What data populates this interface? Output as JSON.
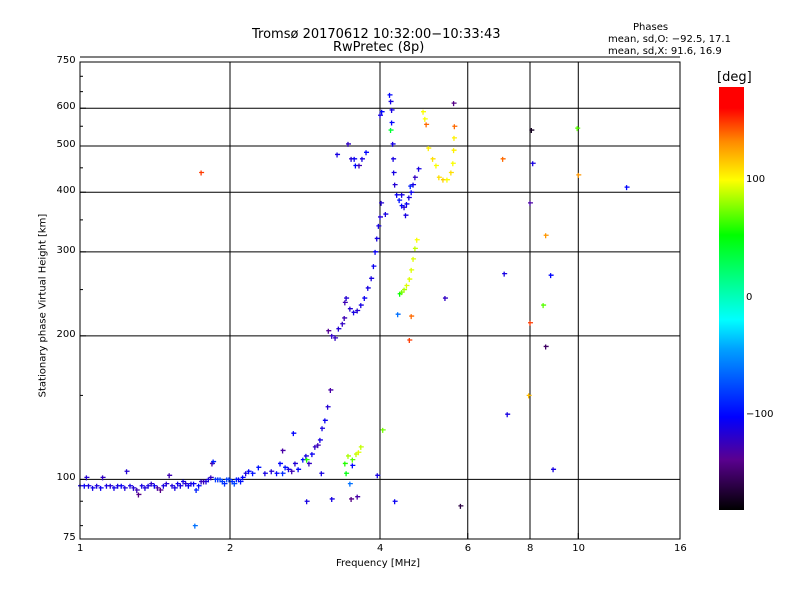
{
  "chart_data": {
    "type": "scatter",
    "title": "Tromsø 20170612 10:32:00−10:33:43",
    "subtitle": "RwPretec (8p)",
    "xlabel": "Frequency [MHz]",
    "ylabel": "Stationary phase Virtual Height [km]",
    "xscale": "log",
    "yscale": "log",
    "xlim": [
      1,
      16
    ],
    "ylim": [
      75,
      750
    ],
    "xticks": [
      1,
      2,
      4,
      6,
      8,
      10,
      16
    ],
    "xtick_labels": [
      "1",
      "2",
      "4",
      "6",
      "8",
      "10",
      "16"
    ],
    "yticks": [
      75,
      100,
      200,
      300,
      400,
      500,
      600,
      750
    ],
    "ytick_labels": [
      "75",
      "100",
      "200",
      "300",
      "400",
      "500",
      "600",
      "750"
    ],
    "grid": true,
    "legend": {
      "title": "Phases",
      "line_o": "mean, sd,O: −92.5, 17.1",
      "line_x": "mean, sd,X:  91.6, 16.9",
      "placement": "top-right"
    },
    "colorbar": {
      "label": "[deg]",
      "range": [
        -180,
        180
      ],
      "ticks": [
        100,
        0,
        -100
      ],
      "tick_labels": [
        "100",
        "0",
        "−100"
      ]
    },
    "points_fields": [
      "frequency_MHz",
      "height_km",
      "phase_deg"
    ],
    "points": [
      [
        1.0,
        97,
        -110
      ],
      [
        1.02,
        97,
        -105
      ],
      [
        1.03,
        101,
        -115
      ],
      [
        1.04,
        97,
        -110
      ],
      [
        1.06,
        96,
        -108
      ],
      [
        1.08,
        97,
        -112
      ],
      [
        1.1,
        96,
        -105
      ],
      [
        1.11,
        101,
        -120
      ],
      [
        1.13,
        97,
        -110
      ],
      [
        1.15,
        97,
        -115
      ],
      [
        1.17,
        96,
        -108
      ],
      [
        1.19,
        97,
        -110
      ],
      [
        1.21,
        97,
        -105
      ],
      [
        1.23,
        96,
        -112
      ],
      [
        1.24,
        104,
        -115
      ],
      [
        1.26,
        97,
        -110
      ],
      [
        1.28,
        96,
        -115
      ],
      [
        1.3,
        95,
        -125
      ],
      [
        1.31,
        93,
        -140
      ],
      [
        1.33,
        97,
        -110
      ],
      [
        1.35,
        96,
        -112
      ],
      [
        1.37,
        97,
        -110
      ],
      [
        1.39,
        98,
        -118
      ],
      [
        1.41,
        97,
        -105
      ],
      [
        1.43,
        96,
        -130
      ],
      [
        1.45,
        95,
        -140
      ],
      [
        1.47,
        97,
        -110
      ],
      [
        1.49,
        98,
        -115
      ],
      [
        1.51,
        102,
        -125
      ],
      [
        1.53,
        97,
        -112
      ],
      [
        1.55,
        96,
        -110
      ],
      [
        1.57,
        98,
        -108
      ],
      [
        1.59,
        97,
        -112
      ],
      [
        1.61,
        99,
        -110
      ],
      [
        1.63,
        98,
        -115
      ],
      [
        1.65,
        97,
        -105
      ],
      [
        1.67,
        98,
        -110
      ],
      [
        1.69,
        98,
        -105
      ],
      [
        1.71,
        95,
        -90
      ],
      [
        1.73,
        97,
        -100
      ],
      [
        1.75,
        99,
        -120
      ],
      [
        1.77,
        99,
        -125
      ],
      [
        1.79,
        99,
        -112
      ],
      [
        1.81,
        100,
        -110
      ],
      [
        1.83,
        101,
        -120
      ],
      [
        1.84,
        108,
        -130
      ],
      [
        1.85,
        109,
        -90
      ],
      [
        1.87,
        100,
        -80
      ],
      [
        1.89,
        100,
        -85
      ],
      [
        1.91,
        100,
        -75
      ],
      [
        1.93,
        99,
        -80
      ],
      [
        1.95,
        98,
        -85
      ],
      [
        1.97,
        100,
        -78
      ],
      [
        1.99,
        100,
        -80
      ],
      [
        2.02,
        99,
        -85
      ],
      [
        2.04,
        98,
        -75
      ],
      [
        2.06,
        100,
        -90
      ],
      [
        2.08,
        100,
        -100
      ],
      [
        2.1,
        99,
        -95
      ],
      [
        2.12,
        101,
        -100
      ],
      [
        2.15,
        103,
        -110
      ],
      [
        2.18,
        104,
        -100
      ],
      [
        2.22,
        103,
        -95
      ],
      [
        2.28,
        106,
        -95
      ],
      [
        2.35,
        103,
        -110
      ],
      [
        2.42,
        104,
        -115
      ],
      [
        2.48,
        103,
        -100
      ],
      [
        2.52,
        108,
        -100
      ],
      [
        2.55,
        103,
        -85
      ],
      [
        2.58,
        106,
        -95
      ],
      [
        2.62,
        105,
        -110
      ],
      [
        2.66,
        104,
        -125
      ],
      [
        2.7,
        108,
        -115
      ],
      [
        2.74,
        105,
        -100
      ],
      [
        2.8,
        110,
        -95
      ],
      [
        2.84,
        112,
        -110
      ],
      [
        2.88,
        108,
        -120
      ],
      [
        2.92,
        113,
        -105
      ],
      [
        2.96,
        117,
        -120
      ],
      [
        3.0,
        118,
        -125
      ],
      [
        3.03,
        121,
        -110
      ],
      [
        3.06,
        128,
        -110
      ],
      [
        3.1,
        133,
        -105
      ],
      [
        3.14,
        142,
        -115
      ],
      [
        3.18,
        154,
        -130
      ],
      [
        3.05,
        103,
        -110
      ],
      [
        2.68,
        125,
        -100
      ],
      [
        2.85,
        110,
        60
      ],
      [
        2.55,
        115,
        -130
      ],
      [
        3.15,
        205,
        -135
      ],
      [
        3.2,
        200,
        -120
      ],
      [
        3.25,
        198,
        -120
      ],
      [
        3.3,
        207,
        -115
      ],
      [
        3.36,
        212,
        -120
      ],
      [
        3.39,
        218,
        -125
      ],
      [
        3.4,
        235,
        -125
      ],
      [
        3.42,
        240,
        -115
      ],
      [
        3.48,
        228,
        -115
      ],
      [
        3.54,
        224,
        -110
      ],
      [
        3.6,
        226,
        -115
      ],
      [
        3.66,
        232,
        -110
      ],
      [
        3.72,
        240,
        -105
      ],
      [
        3.78,
        252,
        -110
      ],
      [
        3.84,
        264,
        -110
      ],
      [
        3.88,
        280,
        -105
      ],
      [
        3.91,
        300,
        -105
      ],
      [
        3.94,
        320,
        -110
      ],
      [
        3.97,
        340,
        -110
      ],
      [
        4.0,
        355,
        -115
      ],
      [
        4.02,
        380,
        -115
      ],
      [
        3.45,
        505,
        -120
      ],
      [
        3.5,
        470,
        -115
      ],
      [
        3.55,
        470,
        -105
      ],
      [
        3.57,
        455,
        -100
      ],
      [
        3.63,
        455,
        -125
      ],
      [
        3.68,
        470,
        -110
      ],
      [
        3.75,
        485,
        -100
      ],
      [
        3.28,
        480,
        -110
      ],
      [
        4.0,
        580,
        -110
      ],
      [
        4.03,
        590,
        -100
      ],
      [
        4.18,
        640,
        -100
      ],
      [
        4.2,
        620,
        -110
      ],
      [
        4.22,
        595,
        -110
      ],
      [
        4.22,
        560,
        -100
      ],
      [
        4.24,
        505,
        -110
      ],
      [
        4.25,
        470,
        -110
      ],
      [
        4.26,
        440,
        -110
      ],
      [
        4.28,
        415,
        -115
      ],
      [
        4.32,
        395,
        -105
      ],
      [
        4.37,
        385,
        -95
      ],
      [
        4.42,
        375,
        -100
      ],
      [
        4.47,
        372,
        -115
      ],
      [
        4.52,
        378,
        -105
      ],
      [
        4.57,
        390,
        -110
      ],
      [
        4.62,
        400,
        -105
      ],
      [
        4.66,
        415,
        -110
      ],
      [
        4.7,
        430,
        -120
      ],
      [
        4.78,
        448,
        -110
      ],
      [
        4.42,
        395,
        -110
      ],
      [
        4.5,
        358,
        -110
      ],
      [
        4.6,
        412,
        -90
      ],
      [
        4.1,
        360,
        -110
      ],
      [
        4.2,
        540,
        40
      ],
      [
        4.38,
        245,
        55
      ],
      [
        4.42,
        247,
        75
      ],
      [
        4.47,
        250,
        85
      ],
      [
        4.52,
        255,
        95
      ],
      [
        4.58,
        263,
        95
      ],
      [
        4.62,
        275,
        95
      ],
      [
        4.66,
        290,
        95
      ],
      [
        4.7,
        305,
        90
      ],
      [
        4.74,
        318,
        100
      ],
      [
        4.34,
        222,
        -60
      ],
      [
        4.62,
        220,
        140
      ],
      [
        4.58,
        196,
        150
      ],
      [
        5.4,
        240,
        -120
      ],
      [
        4.88,
        590,
        100
      ],
      [
        4.92,
        570,
        100
      ],
      [
        4.95,
        555,
        140
      ],
      [
        5.0,
        495,
        105
      ],
      [
        5.1,
        470,
        110
      ],
      [
        5.18,
        455,
        100
      ],
      [
        5.25,
        430,
        110
      ],
      [
        5.35,
        425,
        115
      ],
      [
        5.45,
        425,
        100
      ],
      [
        5.55,
        440,
        110
      ],
      [
        5.6,
        460,
        100
      ],
      [
        5.62,
        490,
        105
      ],
      [
        5.63,
        520,
        105
      ],
      [
        5.64,
        550,
        140
      ],
      [
        5.62,
        615,
        -140
      ],
      [
        3.45,
        112,
        85
      ],
      [
        3.52,
        110,
        70
      ],
      [
        3.58,
        113,
        90
      ],
      [
        3.62,
        114,
        95
      ],
      [
        3.66,
        117,
        90
      ],
      [
        3.4,
        108,
        60
      ],
      [
        3.42,
        103,
        50
      ],
      [
        3.48,
        98,
        -60
      ],
      [
        3.52,
        107,
        -100
      ],
      [
        3.95,
        102,
        -110
      ],
      [
        4.05,
        127,
        75
      ],
      [
        4.28,
        90,
        -105
      ],
      [
        3.5,
        91,
        -140
      ],
      [
        3.6,
        92,
        -130
      ],
      [
        2.85,
        90,
        -110
      ],
      [
        3.2,
        91,
        -110
      ],
      [
        1.75,
        440,
        150
      ],
      [
        1.7,
        80,
        -60
      ],
      [
        5.8,
        88,
        -160
      ],
      [
        7.05,
        470,
        140
      ],
      [
        8.05,
        540,
        -170
      ],
      [
        8.1,
        460,
        -110
      ],
      [
        9.95,
        545,
        70
      ],
      [
        10.0,
        435,
        130
      ],
      [
        12.5,
        410,
        -100
      ],
      [
        8.0,
        380,
        -130
      ],
      [
        8.6,
        325,
        130
      ],
      [
        8.8,
        268,
        -100
      ],
      [
        8.5,
        232,
        70
      ],
      [
        8.0,
        213,
        150
      ],
      [
        7.95,
        150,
        120
      ],
      [
        7.1,
        270,
        -110
      ],
      [
        7.2,
        137,
        -110
      ],
      [
        8.6,
        190,
        -150
      ],
      [
        8.9,
        105,
        -110
      ]
    ]
  }
}
